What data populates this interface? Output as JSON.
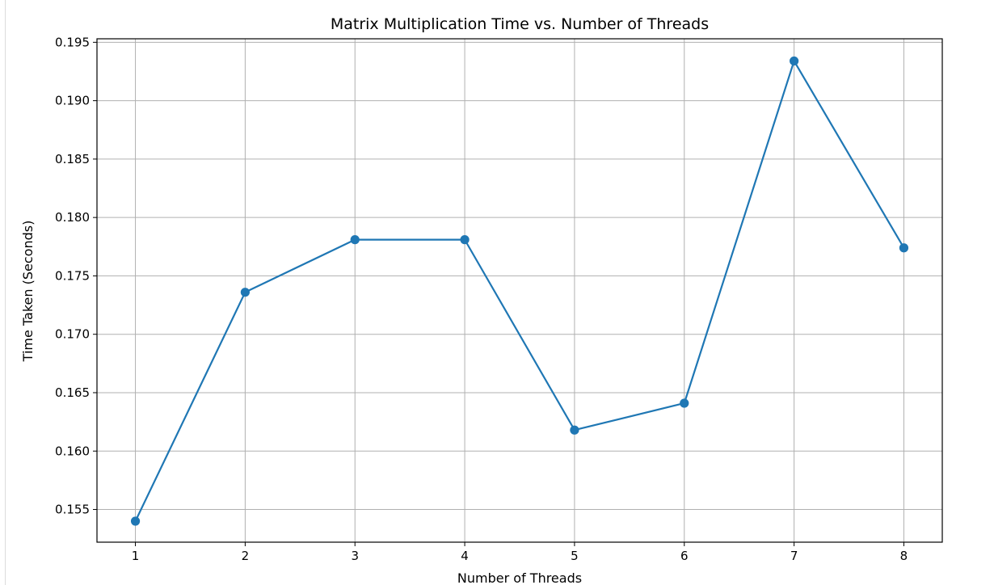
{
  "chart_data": {
    "type": "line",
    "title": "Matrix Multiplication Time vs. Number of Threads",
    "xlabel": "Number of Threads",
    "ylabel": "Time Taken (Seconds)",
    "x": [
      1,
      2,
      3,
      4,
      5,
      6,
      7,
      8
    ],
    "xticks": [
      "1",
      "2",
      "3",
      "4",
      "5",
      "6",
      "7",
      "8"
    ],
    "xlim": [
      0.65,
      8.35
    ],
    "ylim": [
      0.1522,
      0.1953
    ],
    "yticks": [
      "0.155",
      "0.160",
      "0.165",
      "0.170",
      "0.175",
      "0.180",
      "0.185",
      "0.190",
      "0.195"
    ],
    "grid": true,
    "legend": "none",
    "series": [
      {
        "color": "#1f77b4",
        "marker": "circle",
        "values": [
          0.154,
          0.1736,
          0.1781,
          0.1781,
          0.1618,
          0.1641,
          0.1934,
          0.1774
        ]
      }
    ]
  }
}
